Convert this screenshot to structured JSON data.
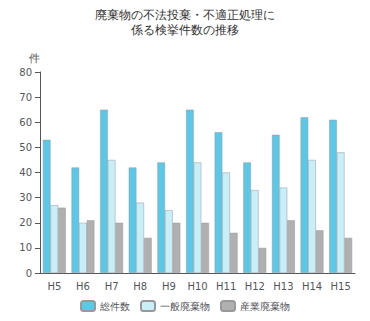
{
  "chart_data": {
    "type": "bar",
    "title": "廃棄物の不法投棄・不適正処理に",
    "subtitle": "係る検挙件数の推移",
    "ylabel": "件",
    "categories": [
      "H5",
      "H6",
      "H7",
      "H8",
      "H9",
      "H10",
      "H11",
      "H12",
      "H13",
      "H14",
      "H15"
    ],
    "series": [
      {
        "name": "総件数",
        "color": "#5bc8e8",
        "values": [
          53,
          42,
          65,
          42,
          44,
          65,
          56,
          44,
          55,
          62,
          61
        ]
      },
      {
        "name": "一般廃棄物",
        "color": "#c8eef8",
        "values": [
          27,
          20,
          45,
          28,
          25,
          44,
          40,
          33,
          34,
          45,
          48
        ]
      },
      {
        "name": "産業廃棄物",
        "color": "#b0b0b0",
        "values": [
          26,
          21,
          20,
          14,
          20,
          20,
          16,
          10,
          21,
          17,
          14
        ]
      }
    ],
    "ylim": [
      0,
      80
    ],
    "yticks": [
      0,
      10,
      20,
      30,
      40,
      50,
      60,
      70,
      80
    ],
    "grid": false,
    "legend": "bottom"
  }
}
